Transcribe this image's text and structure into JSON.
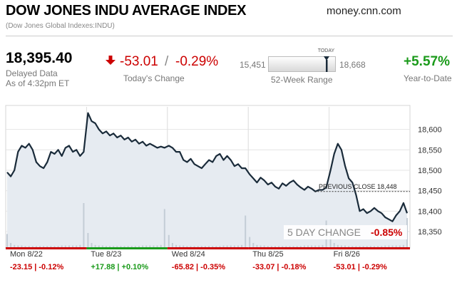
{
  "header": {
    "title": "DOW JONES INDU AVERAGE INDEX",
    "subtitle": "(Dow Jones Global Indexes:INDU)",
    "source": "money.cnn.com"
  },
  "quote": {
    "price": "18,395.40",
    "delayed": "Delayed Data",
    "as_of": "As of 4:32pm ET",
    "change": "-53.01",
    "separator": "/",
    "change_pct": "-0.29%",
    "change_label": "Today's Change",
    "week52_low": "15,451",
    "week52_high": "18,668",
    "week52_today_label": "TODAY",
    "week52_label": "52-Week Range",
    "week52_position": 0.86,
    "ytd": "+5.57%",
    "ytd_label": "Year-to-Date"
  },
  "colors": {
    "negative": "#cc0000",
    "positive": "#1a9a1a",
    "line": "#1a2b3a",
    "area": "#e6ebf1",
    "volume": "#c4cdd6"
  },
  "chart_data": {
    "type": "area",
    "title": "",
    "xlabel": "",
    "ylabel": "",
    "ylim": [
      18310,
      18655
    ],
    "yticks": [
      "18,600",
      "18,550",
      "18,500",
      "18,450",
      "18,400",
      "18,350"
    ],
    "ytick_values": [
      18600,
      18550,
      18500,
      18450,
      18400,
      18350
    ],
    "days": [
      "Mon 8/22",
      "Tue 8/23",
      "Wed 8/24",
      "Thu 8/25",
      "Fri 8/26"
    ],
    "day_changes": [
      {
        "text": "-23.15 | -0.12%",
        "dir": "neg"
      },
      {
        "text": "+17.88 | +0.10%",
        "dir": "pos"
      },
      {
        "text": "-65.82 | -0.35%",
        "dir": "neg"
      },
      {
        "text": "-33.07 | -0.18%",
        "dir": "neg"
      },
      {
        "text": "-53.01 | -0.29%",
        "dir": "neg"
      }
    ],
    "previous_close": 18448,
    "previous_close_label": "PREVIOUS CLOSE 18,448",
    "five_day_label": "5 DAY CHANGE",
    "five_day_value": "-0.85%",
    "series": [
      {
        "values": [
          [
            18495,
            18485,
            18500,
            18545,
            18560,
            18555,
            18565,
            18550,
            18520,
            18510,
            18505,
            18520,
            18545,
            18540,
            18550,
            18535,
            18555,
            18560,
            18545,
            18550,
            18535,
            18545
          ],
          [
            18640,
            18620,
            18615,
            18600,
            18590,
            18595,
            18585,
            18590,
            18580,
            18585,
            18575,
            18580,
            18570,
            18575,
            18565,
            18570,
            18560,
            18565,
            18560,
            18555,
            18558,
            18555
          ],
          [
            18560,
            18555,
            18545,
            18545,
            18525,
            18520,
            18528,
            18515,
            18510,
            18505,
            18515,
            18525,
            18520,
            18535,
            18540,
            18525,
            18535,
            18525,
            18510,
            18515,
            18505,
            18505
          ],
          [
            18490,
            18480,
            18470,
            18482,
            18475,
            18465,
            18470,
            18460,
            18455,
            18468,
            18462,
            18470,
            18475,
            18465,
            18458,
            18452,
            18460,
            18455,
            18448,
            18452,
            18452,
            18458
          ],
          [
            18500,
            18540,
            18565,
            18550,
            18510,
            18480,
            18470,
            18440,
            18400,
            18405,
            18395,
            18400,
            18408,
            18400,
            18395,
            18385,
            18380,
            18375,
            18390,
            18400,
            18420,
            18395
          ]
        ]
      }
    ],
    "volumes": [
      [
        0.28,
        0.1,
        0.06,
        0.05,
        0.05,
        0.04,
        0.04,
        0.04,
        0.04,
        0.04,
        0.04,
        0.04,
        0.04,
        0.04,
        0.04,
        0.05,
        0.05,
        0.05,
        0.05,
        0.05,
        0.06,
        0.9
      ],
      [
        0.3,
        0.1,
        0.06,
        0.05,
        0.05,
        0.04,
        0.04,
        0.04,
        0.04,
        0.04,
        0.04,
        0.04,
        0.04,
        0.04,
        0.04,
        0.05,
        0.05,
        0.05,
        0.05,
        0.05,
        0.06,
        0.78
      ],
      [
        0.26,
        0.1,
        0.06,
        0.05,
        0.05,
        0.04,
        0.04,
        0.04,
        0.04,
        0.04,
        0.04,
        0.04,
        0.04,
        0.04,
        0.04,
        0.05,
        0.05,
        0.05,
        0.05,
        0.05,
        0.06,
        0.65
      ],
      [
        0.22,
        0.1,
        0.06,
        0.05,
        0.05,
        0.04,
        0.04,
        0.04,
        0.04,
        0.04,
        0.04,
        0.04,
        0.04,
        0.04,
        0.04,
        0.05,
        0.05,
        0.05,
        0.05,
        0.05,
        0.06,
        0.55
      ],
      [
        0.28,
        0.1,
        0.06,
        0.05,
        0.05,
        0.04,
        0.04,
        0.04,
        0.04,
        0.04,
        0.04,
        0.04,
        0.04,
        0.04,
        0.04,
        0.05,
        0.05,
        0.05,
        0.05,
        0.05,
        0.06,
        0.6
      ]
    ]
  }
}
